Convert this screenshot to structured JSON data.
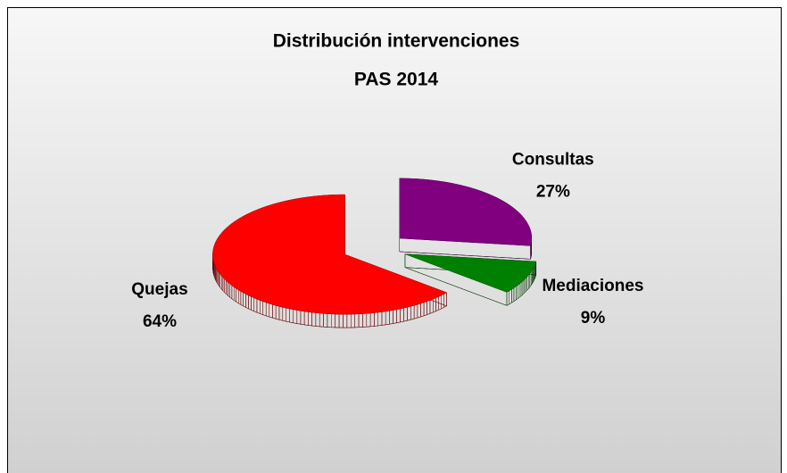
{
  "chart_data": {
    "type": "pie3d",
    "title": [
      "Distribución intervenciones",
      "PAS 2014"
    ],
    "categories": [
      "Consultas",
      "Mediaciones",
      "Quejas"
    ],
    "values": [
      27,
      9,
      64
    ],
    "value_labels": [
      "27%",
      "9%",
      "64%"
    ],
    "colors": [
      "#800080",
      "#008000",
      "#ff0000"
    ]
  }
}
